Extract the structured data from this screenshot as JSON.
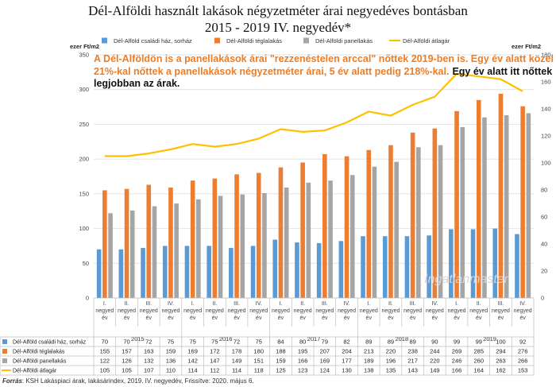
{
  "chart_data": {
    "type": "bar",
    "title": "Dél-Alföldi használt lakások négyzetméter árai negyedéves bontásban",
    "subtitle": "2015 - 2019 IV. negyedév*",
    "ylabel_left": "ezer Ft/m2",
    "ylabel_right": "ezer Ft/m2",
    "ylim_left": [
      0,
      350
    ],
    "yticks_left": [
      0,
      50,
      100,
      150,
      200,
      250,
      300,
      350
    ],
    "ylim_right": [
      0,
      180
    ],
    "yticks_right": [
      0,
      20,
      40,
      60,
      80,
      100,
      120,
      140,
      160,
      180
    ],
    "legend_position": "top",
    "grid": true,
    "quarters": [
      "I. negyed év",
      "II. negyed év",
      "III. negyed év",
      "IV. negyed év"
    ],
    "years": [
      "2015",
      "2016",
      "2017",
      "2018",
      "2019"
    ],
    "series": [
      {
        "name": "Dél-Alföld családi ház, sorház",
        "type": "bar",
        "axis": "left",
        "color": "#5b9bd5",
        "values": [
          70,
          70,
          72,
          75,
          75,
          75,
          72,
          75,
          84,
          80,
          79,
          82,
          89,
          89,
          89,
          90,
          99,
          99,
          100,
          92
        ]
      },
      {
        "name": "Dél-Alföldi téglalakás",
        "type": "bar",
        "axis": "left",
        "color": "#ed7d31",
        "values": [
          155,
          157,
          163,
          159,
          169,
          172,
          178,
          180,
          188,
          195,
          207,
          204,
          213,
          220,
          238,
          244,
          269,
          285,
          294,
          276
        ]
      },
      {
        "name": "Dél-Alföldi panellakás",
        "type": "bar",
        "axis": "left",
        "color": "#a5a5a5",
        "values": [
          122,
          126,
          132,
          136,
          142,
          147,
          149,
          151,
          159,
          166,
          169,
          177,
          189,
          196,
          217,
          220,
          246,
          260,
          263,
          266
        ]
      },
      {
        "name": "Dél-Alföldi átlagár",
        "type": "line",
        "axis": "right",
        "color": "#ffc000",
        "values": [
          105,
          105,
          107,
          110,
          114,
          112,
          114,
          118,
          125,
          123,
          124,
          130,
          138,
          135,
          143,
          149,
          166,
          164,
          162,
          153
        ]
      }
    ],
    "annotation_orange": [
      "A Dél-Alföldön is a panellakások árai \"rezzenéstelen arccal\" nőttek 2019-ben is.  Egy  év alatt  közel",
      "21%-kal nőttek a panellakások négyzetméter árai, 5 év alatt pedig 218%-kal."
    ],
    "annotation_black": [
      "Egy év alatt itt nőttek",
      "legjobban az árak."
    ],
    "source_label": "Forrás",
    "source_text": ": KSH Lakáspiaci árak, lakásárindex, 2019. IV. negyedév, Frissítve: 2020. május 6.",
    "watermark": "Ingatlanmaster"
  }
}
